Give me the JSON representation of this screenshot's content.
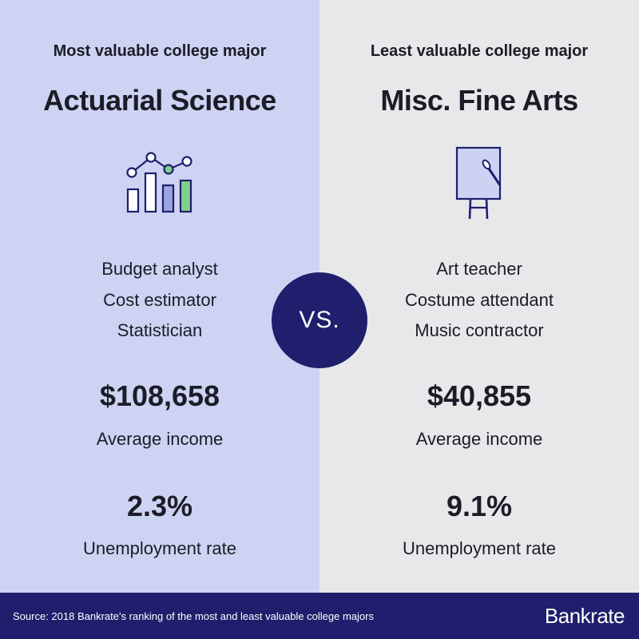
{
  "left": {
    "kicker": "Most valuable college major",
    "major": "Actuarial Science",
    "icon": "bar-line-chart-icon",
    "jobs": [
      "Budget analyst",
      "Cost estimator",
      "Statistician"
    ],
    "income": "$108,658",
    "income_label": "Average income",
    "unemployment": "2.3%",
    "unemployment_label": "Unemployment rate"
  },
  "right": {
    "kicker": "Least valuable college major",
    "major": "Misc. Fine Arts",
    "icon": "easel-paintbrush-icon",
    "jobs": [
      "Art teacher",
      "Costume attendant",
      "Music contractor"
    ],
    "income": "$40,855",
    "income_label": "Average income",
    "unemployment": "9.1%",
    "unemployment_label": "Unemployment rate"
  },
  "vs_label": "VS.",
  "footer": {
    "source": "Source: 2018 Bankrate's ranking of the most and least valuable college majors",
    "brand": "Bankrate"
  },
  "colors": {
    "left_bg": "#cdd3f2",
    "right_bg": "#e8e8ea",
    "navy": "#1f1f6e",
    "green": "#7ed08c",
    "icon_fill": "#9aa4dd"
  }
}
